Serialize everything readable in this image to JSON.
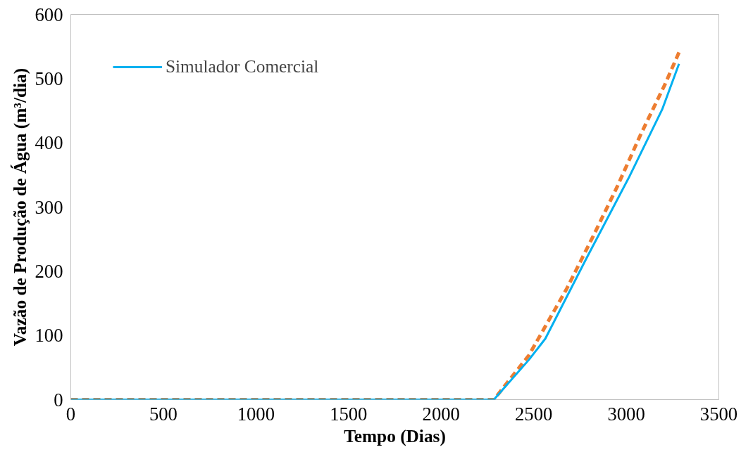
{
  "chart_data": {
    "type": "line",
    "xlabel": "Tempo (Dias)",
    "ylabel": "Vazão de Produção de Água (m³/dia)",
    "xlim": [
      0,
      3500
    ],
    "ylim": [
      0,
      600
    ],
    "xticks": [
      0,
      500,
      1000,
      1500,
      2000,
      2500,
      3000,
      3500
    ],
    "yticks": [
      0,
      100,
      200,
      300,
      400,
      500,
      600
    ],
    "grid": false,
    "legend": "top left",
    "marker": "none",
    "series": [
      {
        "color": "#ed7d31",
        "line_style": "dashed",
        "x": [
          0,
          500,
          1000,
          1500,
          2000,
          2285,
          2474,
          2679,
          2822,
          2950,
          3078,
          3209,
          3285
        ],
        "values": [
          0,
          0,
          0,
          0,
          0,
          0,
          69,
          173,
          255,
          331,
          413,
          491,
          541
        ]
      },
      {
        "name": "Simulador Comercial",
        "color": "#00b0f0",
        "line_style": "solid",
        "x": [
          0,
          500,
          1000,
          1500,
          2000,
          2285,
          2474,
          2563,
          2783,
          3016,
          3194,
          3285
        ],
        "values": [
          0,
          0,
          0,
          0,
          0,
          0,
          62,
          95,
          219,
          347,
          452,
          523
        ]
      }
    ]
  }
}
